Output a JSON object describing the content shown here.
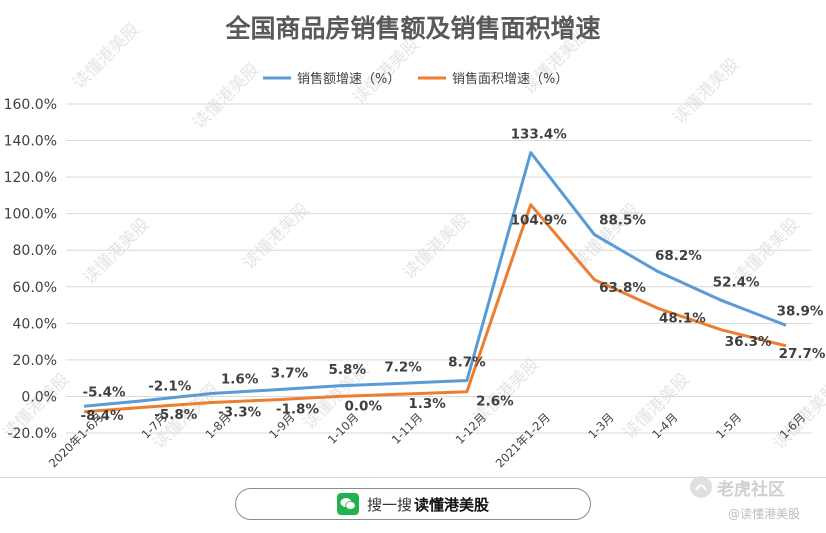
{
  "chart_data": {
    "type": "line",
    "title": "全国商品房销售额及销售面积增速",
    "xlabel": "",
    "ylabel": "",
    "categories": [
      "2020年1-6月",
      "1-7月",
      "1-8月",
      "1-9月",
      "1-10月",
      "1-11月",
      "1-12月",
      "2021年1-2月",
      "1-3月",
      "1-4月",
      "1-5月",
      "1-6月"
    ],
    "series": [
      {
        "name": "销售额增速（%）",
        "color": "#5b9bd5",
        "values": [
          -5.4,
          -2.1,
          1.6,
          3.7,
          5.8,
          7.2,
          8.7,
          133.4,
          88.5,
          68.2,
          52.4,
          38.9
        ],
        "labels": [
          "-5.4%",
          "-2.1%",
          "1.6%",
          "3.7%",
          "5.8%",
          "7.2%",
          "8.7%",
          "133.4%",
          "88.5%",
          "68.2%",
          "52.4%",
          "38.9%"
        ]
      },
      {
        "name": "销售面积增速（%）",
        "color": "#ed7d31",
        "values": [
          -8.4,
          -5.8,
          -3.3,
          -1.8,
          0.0,
          1.3,
          2.6,
          104.9,
          63.8,
          48.1,
          36.3,
          27.7
        ],
        "labels": [
          "-8.4%",
          "-5.8%",
          "-3.3%",
          "-1.8%",
          "0.0%",
          "1.3%",
          "2.6%",
          "104.9%",
          "63.8%",
          "48.1%",
          "36.3%",
          "27.7%"
        ]
      }
    ],
    "ylim": [
      -20,
      160
    ],
    "yticks": [
      "-20.0%",
      "0.0%",
      "20.0%",
      "40.0%",
      "60.0%",
      "80.0%",
      "100.0%",
      "120.0%",
      "140.0%",
      "160.0%"
    ],
    "ytick_values": [
      -20,
      0,
      20,
      40,
      60,
      80,
      100,
      120,
      140,
      160
    ],
    "grid": true,
    "legend": "top-center"
  },
  "watermark": "读懂港美股",
  "footer": {
    "search_prefix": "搜一搜",
    "search_name": "读懂港美股",
    "icon": "wechat-icon"
  },
  "brand": {
    "name": "老虎社区",
    "handle": "@读懂港美股"
  }
}
